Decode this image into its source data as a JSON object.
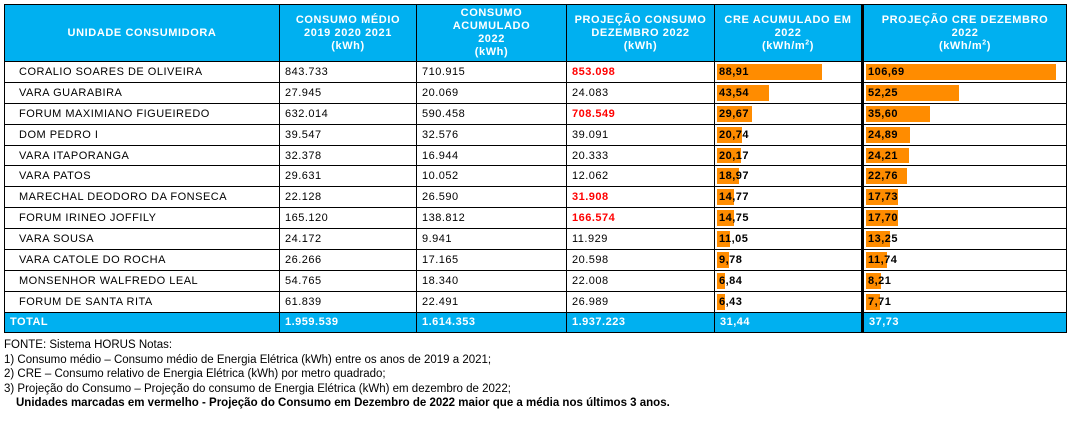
{
  "headers": {
    "unit": "UNIDADE CONSUMIDORA",
    "avg": [
      "CONSUMO MÉDIO",
      "2019 2020 2021",
      "(kWh)"
    ],
    "acc": [
      "CONSUMO",
      "ACUMULADO",
      "2022",
      "(kWh)"
    ],
    "proj": [
      "PROJEÇÃO CONSUMO",
      "DEZEMBRO 2022",
      "(kWh)"
    ],
    "cre_acc": [
      "CRE ACUMULADO EM",
      "2022",
      "(kWh/m",
      "2",
      ")"
    ],
    "cre_proj": [
      "PROJEÇÃO CRE DEZEMBRO",
      "2022",
      "(kWh/m",
      "2",
      ")"
    ]
  },
  "rows": [
    {
      "unit": "CORALIO SOARES DE OLIVEIRA",
      "avg": "843.733",
      "acc": "710.915",
      "proj": "853.098",
      "red": true,
      "cre_acc": "88,91",
      "cre_proj": "106,69"
    },
    {
      "unit": "VARA GUARABIRA",
      "avg": "27.945",
      "acc": "20.069",
      "proj": "24.083",
      "red": false,
      "cre_acc": "43,54",
      "cre_proj": "52,25"
    },
    {
      "unit": "FORUM MAXIMIANO FIGUEIREDO",
      "avg": "632.014",
      "acc": "590.458",
      "proj": "708.549",
      "red": true,
      "cre_acc": "29,67",
      "cre_proj": "35,60"
    },
    {
      "unit": "DOM PEDRO I",
      "avg": "39.547",
      "acc": "32.576",
      "proj": "39.091",
      "red": false,
      "cre_acc": "20,74",
      "cre_proj": "24,89"
    },
    {
      "unit": "VARA ITAPORANGA",
      "avg": "32.378",
      "acc": "16.944",
      "proj": "20.333",
      "red": false,
      "cre_acc": "20,17",
      "cre_proj": "24,21"
    },
    {
      "unit": "VARA PATOS",
      "avg": "29.631",
      "acc": "10.052",
      "proj": "12.062",
      "red": false,
      "cre_acc": "18,97",
      "cre_proj": "22,76"
    },
    {
      "unit": "MARECHAL DEODORO DA FONSECA",
      "avg": "22.128",
      "acc": "26.590",
      "proj": "31.908",
      "red": true,
      "cre_acc": "14,77",
      "cre_proj": "17,73"
    },
    {
      "unit": "FORUM IRINEO JOFFILY",
      "avg": "165.120",
      "acc": "138.812",
      "proj": "166.574",
      "red": true,
      "cre_acc": "14,75",
      "cre_proj": "17,70"
    },
    {
      "unit": "VARA SOUSA",
      "avg": "24.172",
      "acc": "9.941",
      "proj": "11.929",
      "red": false,
      "cre_acc": "11,05",
      "cre_proj": "13,25"
    },
    {
      "unit": "VARA CATOLE DO ROCHA",
      "avg": "26.266",
      "acc": "17.165",
      "proj": "20.598",
      "red": false,
      "cre_acc": "9,78",
      "cre_proj": "11,74"
    },
    {
      "unit": "MONSENHOR WALFREDO LEAL",
      "avg": "54.765",
      "acc": "18.340",
      "proj": "22.008",
      "red": false,
      "cre_acc": "6,84",
      "cre_proj": "8,21"
    },
    {
      "unit": "FORUM DE SANTA RITA",
      "avg": "61.839",
      "acc": "22.491",
      "proj": "26.989",
      "red": false,
      "cre_acc": "6,43",
      "cre_proj": "7,71"
    }
  ],
  "total": {
    "unit": "TOTAL",
    "avg": "1.959.539",
    "acc": "1.614.353",
    "proj": "1.937.223",
    "cre_acc": "31,44",
    "cre_proj": "37,73"
  },
  "bar_scale": {
    "cre_acc_max": 120,
    "cre_proj_max": 111
  },
  "colors": {
    "header_bg": "#00b0f0",
    "bar": "#ff8c00",
    "highlight_red": "#ff0000"
  },
  "notes": {
    "source": "FONTE: Sistema HORUS Notas:",
    "n1": "1) Consumo médio – Consumo médio de Energia Elétrica (kWh) entre os anos de 2019 a 2021;",
    "n2": "2) CRE – Consumo relativo de Energia Elétrica (kWh) por metro quadrado;",
    "n3": "3) Projeção do Consumo – Projeção do consumo de Energia Elétrica (kWh) em dezembro de 2022;",
    "bold": "Unidades marcadas em vermelho -  Projeção do Consumo em Dezembro de 2022 maior que a média nos últimos 3 anos."
  }
}
